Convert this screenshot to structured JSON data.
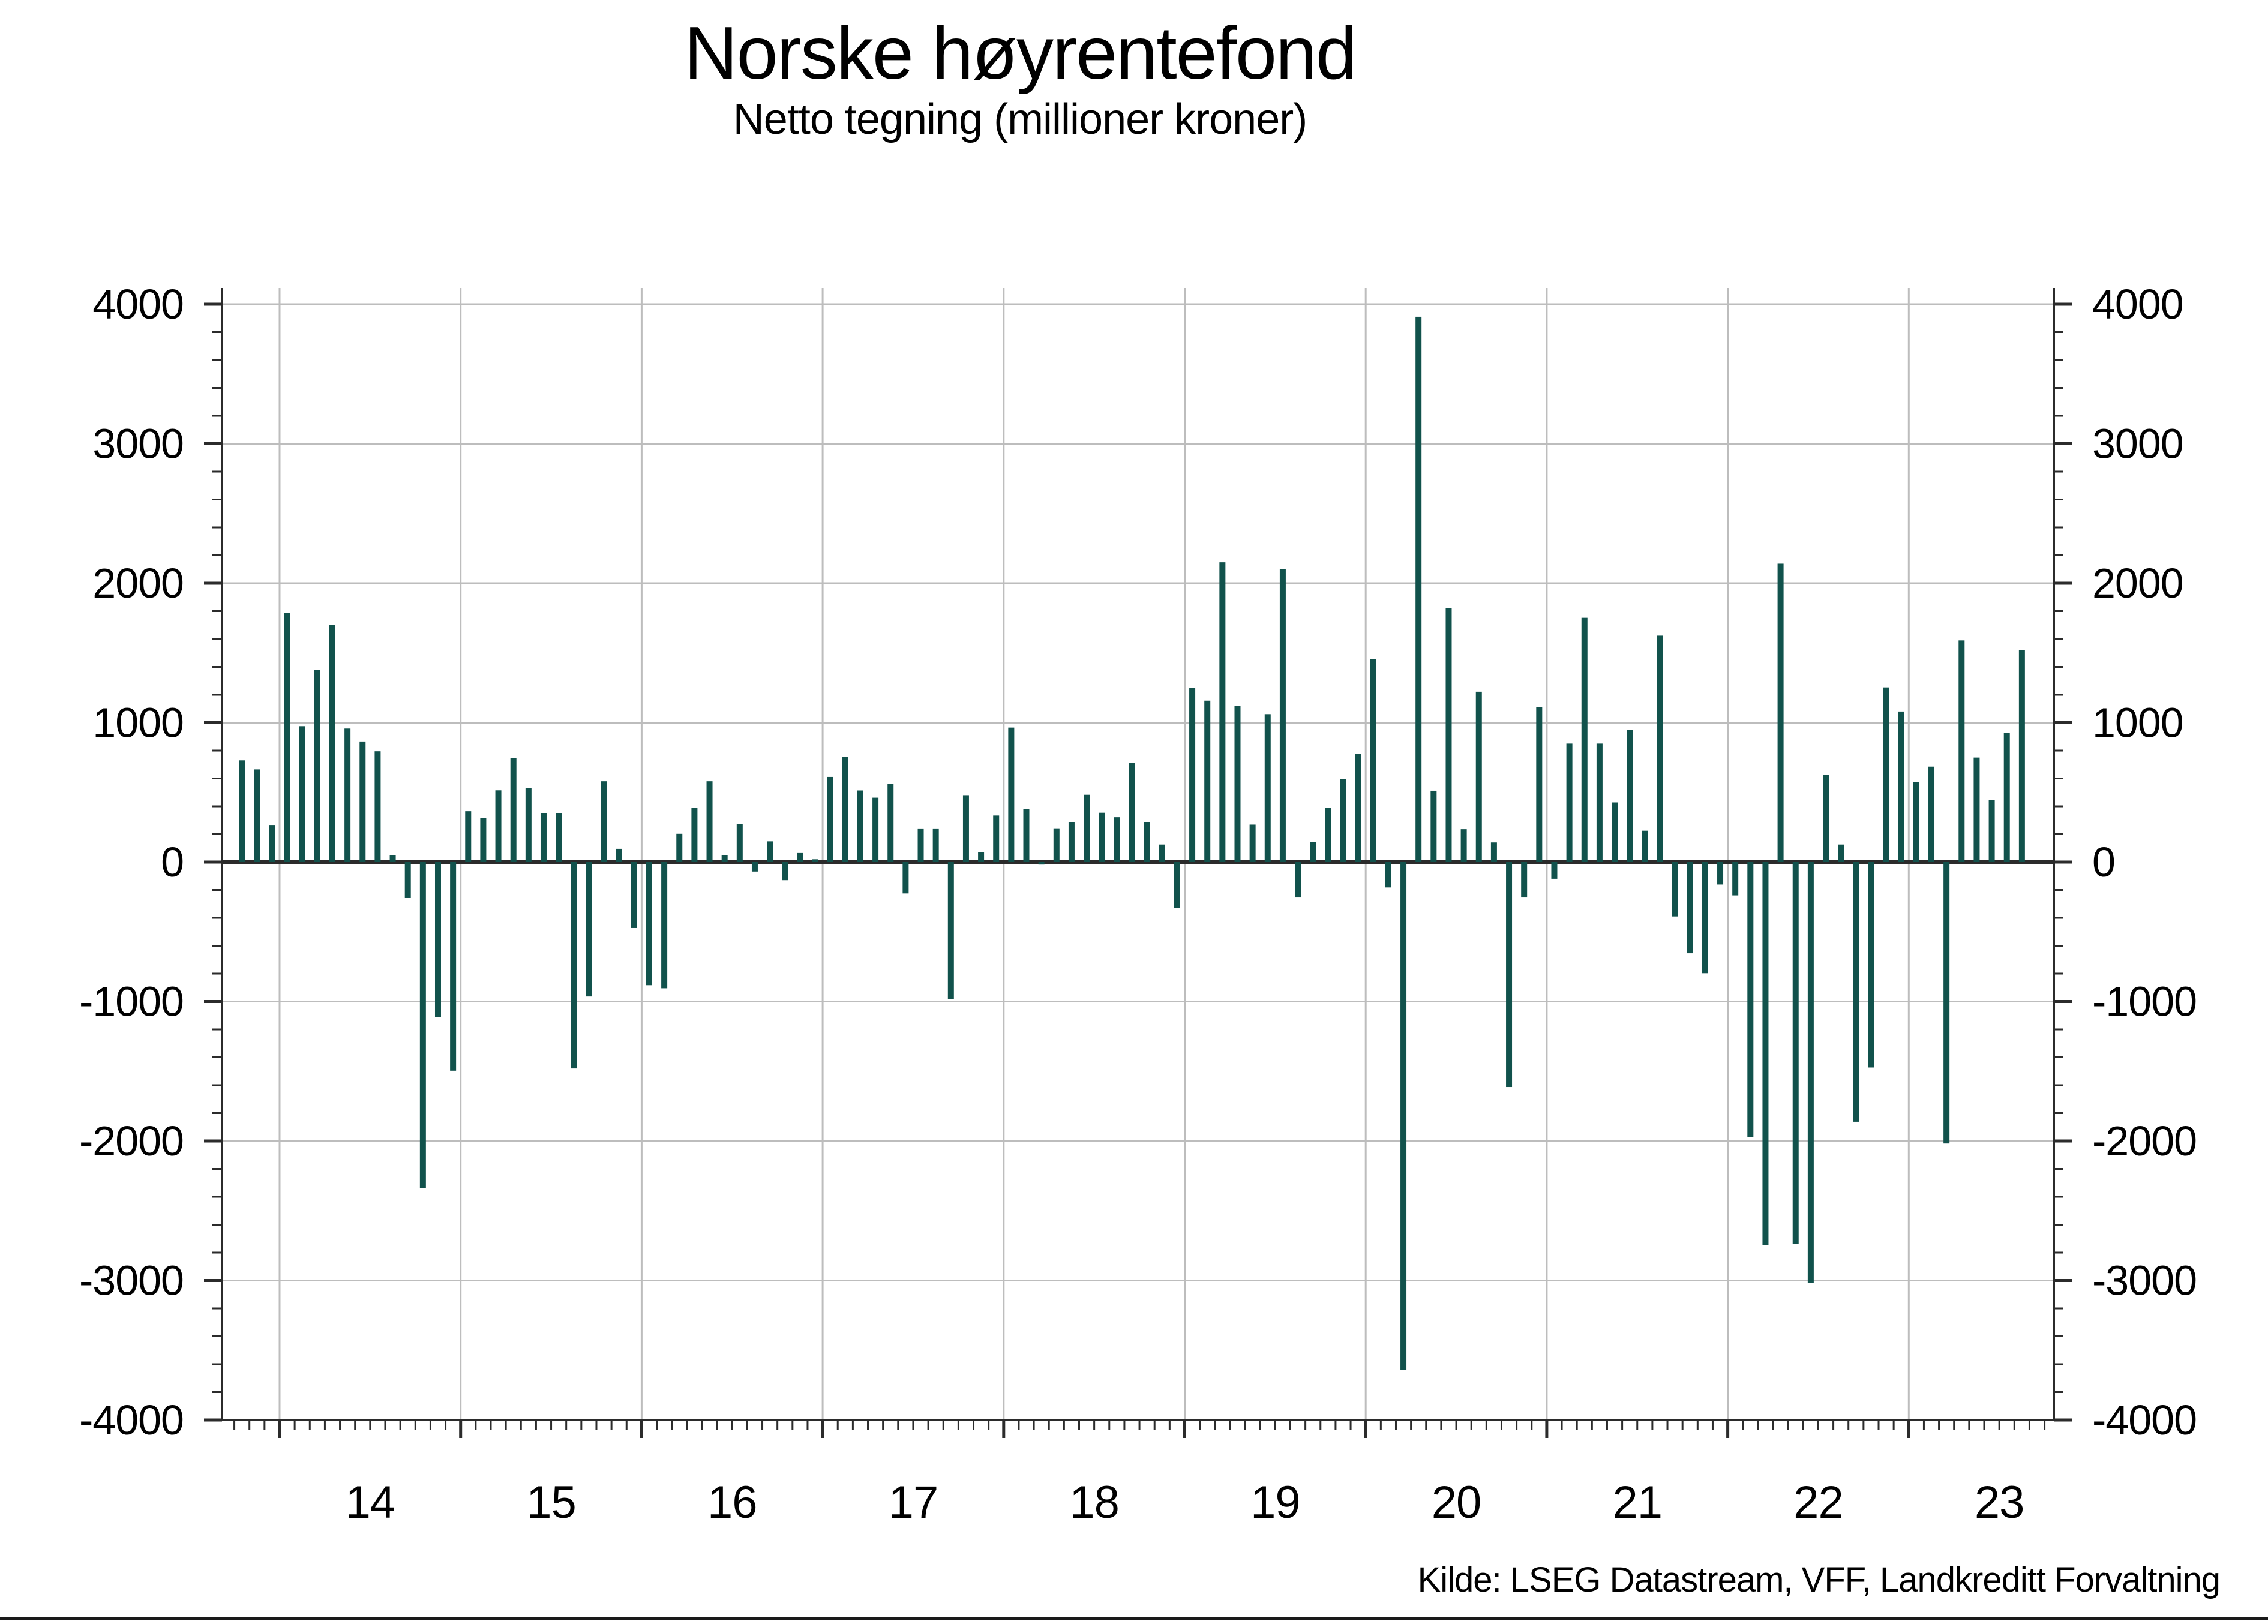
{
  "chart_data": {
    "type": "bar",
    "title": "Norske høyrentefond",
    "subtitle": "Netto tegning (millioner kroner)",
    "source": "Kilde: LSEG Datastream, VFF, Landkreditt Forvaltning",
    "ylabel": "",
    "xlabel": "",
    "ylim": [
      -4000,
      4000
    ],
    "y_ticks": [
      4000,
      3000,
      2000,
      1000,
      0,
      -1000,
      -2000,
      -3000,
      -4000
    ],
    "y_minor_step": 200,
    "x_tick_labels": [
      "14",
      "15",
      "16",
      "17",
      "18",
      "19",
      "20",
      "21",
      "22",
      "23"
    ],
    "grid": true,
    "legend": "none",
    "bar_color": "#11524C",
    "axis_color": "#2b2b2b",
    "grid_color": "#bdbdbd",
    "series_name": "Netto tegning (millioner kroner)",
    "frequency": "monthly",
    "start_month": "2013-10",
    "end_month": "2023-08",
    "values": [
      730,
      665,
      262,
      1785,
      975,
      1380,
      1700,
      958,
      865,
      795,
      50,
      -258,
      -2337,
      -1112,
      -1496,
      365,
      318,
      515,
      745,
      529,
      352,
      352,
      -1480,
      -964,
      580,
      95,
      -473,
      -883,
      -905,
      203,
      388,
      580,
      49,
      272,
      -68,
      149,
      -130,
      65,
      20,
      611,
      754,
      514,
      462,
      560,
      -225,
      237,
      237,
      -982,
      480,
      72,
      334,
      965,
      380,
      -18,
      238,
      288,
      483,
      354,
      322,
      711,
      288,
      126,
      -330,
      1250,
      1158,
      2150,
      1121,
      269,
      1061,
      2100,
      -254,
      145,
      388,
      594,
      776,
      1456,
      -182,
      -3640,
      3910,
      512,
      1820,
      236,
      1222,
      141,
      -1613,
      -254,
      1110,
      -120,
      850,
      1752,
      850,
      428,
      950,
      225,
      1624,
      -390,
      -654,
      -797,
      -161,
      -239,
      -1974,
      -2746,
      2140,
      -2738,
      -3018,
      624,
      126,
      -1862,
      -1473,
      1253,
      1080,
      574,
      685,
      -2018,
      1590,
      750,
      445,
      928,
      1520
    ]
  }
}
